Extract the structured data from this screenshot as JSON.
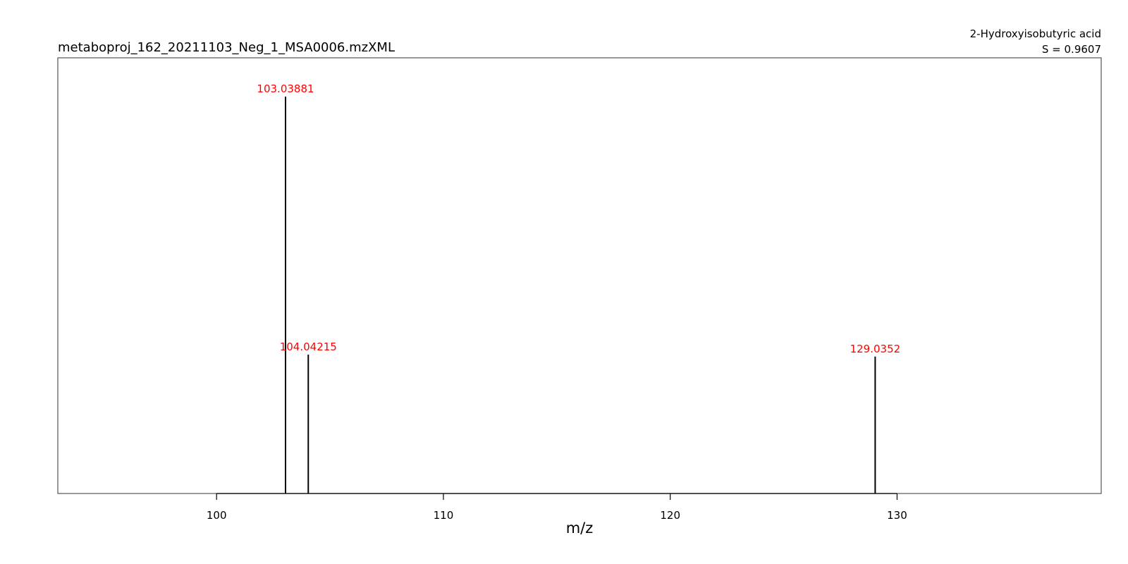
{
  "chart_data": {
    "type": "bar",
    "title": "metaboproj_162_20211103_Neg_1_MSA0006.mzXML",
    "annotation": {
      "compound": "2-Hydroxyisobutyric acid",
      "score": "S = 0.9607"
    },
    "xlabel": "m/z",
    "ylabel": "",
    "xlim": [
      93,
      139
    ],
    "ylim": [
      0,
      100
    ],
    "x_ticks": [
      100,
      110,
      120,
      130
    ],
    "x_tick_labels": [
      "100",
      "110",
      "120",
      "130"
    ],
    "peaks": [
      {
        "mz": 103.03881,
        "label": "103.03881",
        "intensity": 100
      },
      {
        "mz": 104.04215,
        "label": "104.04215",
        "intensity": 35
      },
      {
        "mz": 129.0352,
        "label": "129.0352",
        "intensity": 34.5
      }
    ],
    "grid": false,
    "colors": {
      "peak_line": "#000000",
      "peak_label": "#ff0000",
      "axis": "#000000",
      "frame": "#555555"
    }
  }
}
